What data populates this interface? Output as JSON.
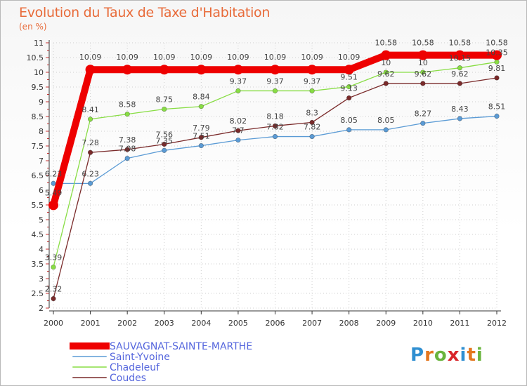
{
  "chart_data": {
    "type": "line",
    "title": "Evolution du Taux de Taxe d'Habitation",
    "subtitle": "(en %)",
    "ylim": [
      2,
      11
    ],
    "y_ticks": [
      "2",
      "2.5",
      "3",
      "3.5",
      "4",
      "4.5",
      "5",
      "5.5",
      "6",
      "6.5",
      "7",
      "7.5",
      "8",
      "8.5",
      "9",
      "9.5",
      "10",
      "10.5",
      "11"
    ],
    "categories": [
      "2000",
      "2001",
      "2002",
      "2003",
      "2004",
      "2005",
      "2006",
      "2007",
      "2008",
      "2009",
      "2010",
      "2011",
      "2012"
    ],
    "series": [
      {
        "name": "SAUVAGNAT-SAINTE-MARTHE",
        "color": "#ee0000",
        "values": [
          5.49,
          10.09,
          10.09,
          10.09,
          10.09,
          10.09,
          10.09,
          10.09,
          10.09,
          10.58,
          10.58,
          10.58,
          10.58
        ],
        "labels": [
          "5.49",
          "10.09",
          "10.09",
          "10.09",
          "10.09",
          "10.09",
          "10.09",
          "10.09",
          "10.09",
          "10.58",
          "10.58",
          "10.58",
          "10.58"
        ]
      },
      {
        "name": "Saint-Yvoine",
        "color": "#5b9bd5",
        "values": [
          6.23,
          6.23,
          7.08,
          7.35,
          7.51,
          7.7,
          7.82,
          7.82,
          8.05,
          8.05,
          8.27,
          8.43,
          8.51
        ],
        "labels": [
          "6.23",
          "6.23",
          "7.08",
          "7.35",
          "7.51",
          "7.7",
          "7.82",
          "7.82",
          "8.05",
          "8.05",
          "8.27",
          "8.43",
          "8.51"
        ]
      },
      {
        "name": "Chadeleuf",
        "color": "#88dd44",
        "values": [
          3.39,
          8.41,
          8.58,
          8.75,
          8.84,
          9.37,
          9.37,
          9.37,
          9.51,
          10,
          10,
          10.15,
          10.35
        ],
        "labels": [
          "3.39",
          "8.41",
          "8.58",
          "8.75",
          "8.84",
          "9.37",
          "9.37",
          "9.37",
          "9.51",
          "10",
          "10",
          "10.15",
          "10.35"
        ]
      },
      {
        "name": "Coudes",
        "color": "#7a2a2a",
        "values": [
          2.32,
          7.28,
          7.38,
          7.56,
          7.79,
          8.02,
          8.18,
          8.3,
          9.13,
          9.62,
          9.62,
          9.62,
          9.81
        ],
        "labels": [
          "2.32",
          "7.28",
          "7.38",
          "7.56",
          "7.79",
          "8.02",
          "8.18",
          "8.3",
          "9.13",
          "9.62",
          "9.62",
          "9.62",
          "9.81"
        ]
      }
    ]
  },
  "branding": {
    "letters": [
      "P",
      "r",
      "o",
      "x",
      "i",
      "t",
      "i"
    ],
    "colors": [
      "#2f8fd1",
      "#e4771f",
      "#6ab43e",
      "#d9262b",
      "#2f8fd1",
      "#e4771f",
      "#6ab43e"
    ]
  }
}
